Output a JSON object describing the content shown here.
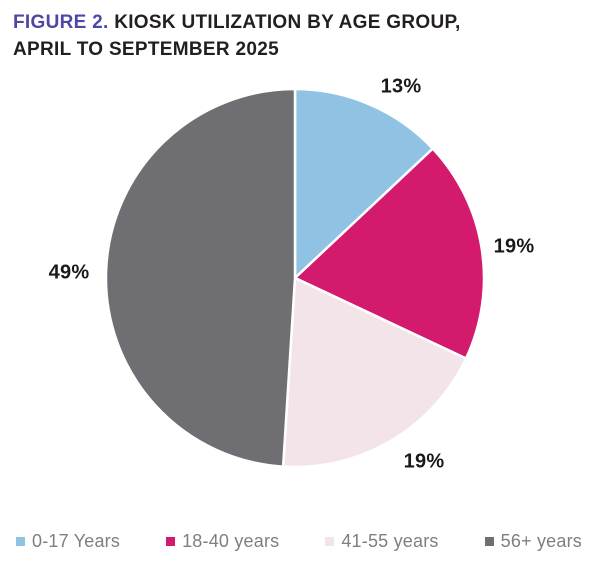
{
  "title": {
    "prefix": "FIGURE 2.",
    "line1_rest": " KIOSK UTILIZATION BY AGE GROUP,",
    "line2": "APRIL TO SEPTEMBER 2025"
  },
  "colors": {
    "title_prefix": "#4c48a4",
    "title_text": "#231f20",
    "percent_label_text": "#1a1a1a",
    "legend_text": "#7e7e84",
    "background": "#ffffff",
    "slice_border": "#ffffff"
  },
  "chart_data": {
    "type": "pie",
    "title": "FIGURE 2. KIOSK UTILIZATION BY AGE GROUP, APRIL TO SEPTEMBER 2025",
    "categories": [
      "0-17 Years",
      "18-40 years",
      "41-55 years",
      "56+ years"
    ],
    "values": [
      13,
      19,
      19,
      49
    ],
    "unit": "%",
    "labels": [
      "13%",
      "19%",
      "19%",
      "49%"
    ],
    "colors": [
      "#90c3e3",
      "#d31a6d",
      "#f3e4ea",
      "#6f6f73"
    ],
    "start_angle_deg": 0,
    "direction": "clockwise",
    "legend_position": "bottom"
  },
  "legend": {
    "items": [
      {
        "label": "0-17 Years",
        "color": "#90c3e3"
      },
      {
        "label": "18-40 years",
        "color": "#d31a6d"
      },
      {
        "label": "41-55 years",
        "color": "#f3e4ea"
      },
      {
        "label": "56+ years",
        "color": "#6f6f73"
      }
    ]
  }
}
